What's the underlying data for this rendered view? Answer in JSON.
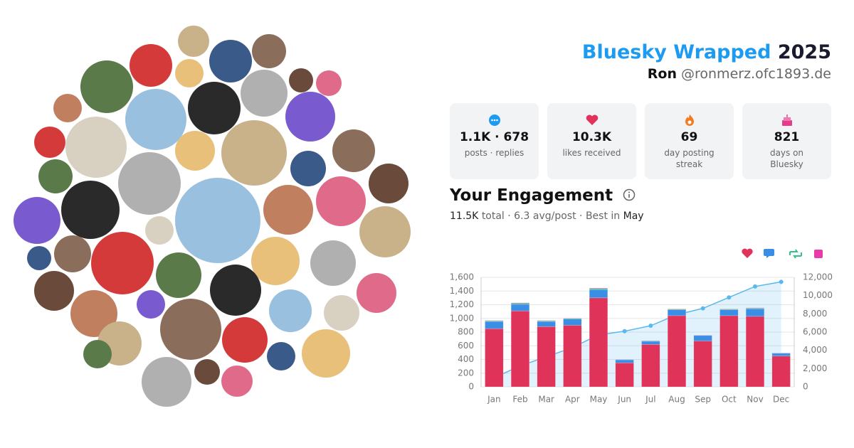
{
  "header": {
    "title": "Bluesky Wrapped",
    "year": "2025",
    "name": "Ron",
    "handle": "@ronmerz.ofc1893.de"
  },
  "stats": [
    {
      "value": "1.1K · 678",
      "label": "posts · replies"
    },
    {
      "value": "10.3K",
      "label": "likes received"
    },
    {
      "value": "69",
      "label": "day posting streak"
    },
    {
      "value": "821",
      "label": "days on Bluesky"
    }
  ],
  "engagement": {
    "title": "Your Engagement",
    "total": "11.5K",
    "summary": "total · 6.3 avg/post · Best in",
    "best": "May"
  },
  "chart_data": {
    "type": "bar",
    "categories": [
      "Jan",
      "Feb",
      "Mar",
      "Apr",
      "May",
      "Jun",
      "Jul",
      "Aug",
      "Sep",
      "Oct",
      "Nov",
      "Dec"
    ],
    "series": [
      {
        "color": "#e0335a",
        "values": [
          850,
          1110,
          880,
          900,
          1300,
          350,
          620,
          1040,
          670,
          1040,
          1030,
          450
        ]
      },
      {
        "color": "#3a8ee6",
        "values": [
          105,
          95,
          75,
          90,
          120,
          45,
          45,
          85,
          80,
          85,
          110,
          40
        ]
      },
      {
        "color": "#2fc28a",
        "values": [
          10,
          15,
          10,
          10,
          15,
          5,
          8,
          10,
          5,
          10,
          10,
          5
        ]
      },
      {
        "color": "#e83aa8",
        "values": [
          5,
          8,
          5,
          5,
          8,
          3,
          3,
          5,
          3,
          5,
          5,
          3
        ]
      },
      {
        "type": "area",
        "axis": "y2",
        "color": "#5bb8ec",
        "values": [
          1000,
          2300,
          3300,
          4300,
          5700,
          6100,
          6700,
          7900,
          8600,
          9800,
          11000,
          11500
        ]
      }
    ],
    "ylim": [
      0,
      1600
    ],
    "yticks": [
      0,
      200,
      400,
      600,
      800,
      {
        "value": 1000,
        "label": "1,000"
      },
      {
        "value": 1200,
        "label": "1,200"
      },
      {
        "value": 1400,
        "label": "1,400"
      },
      {
        "value": 1600,
        "label": "1,600"
      }
    ],
    "y2lim": [
      0,
      12000
    ],
    "y2ticks": [
      0,
      {
        "value": 2000,
        "label": "2,000"
      },
      {
        "value": 4000,
        "label": "4,000"
      },
      {
        "value": 6000,
        "label": "6,000"
      },
      {
        "value": 8000,
        "label": "8,000"
      },
      {
        "value": 10000,
        "label": "10,000"
      },
      {
        "value": 12000,
        "label": "12,000"
      }
    ],
    "grid": true
  }
}
